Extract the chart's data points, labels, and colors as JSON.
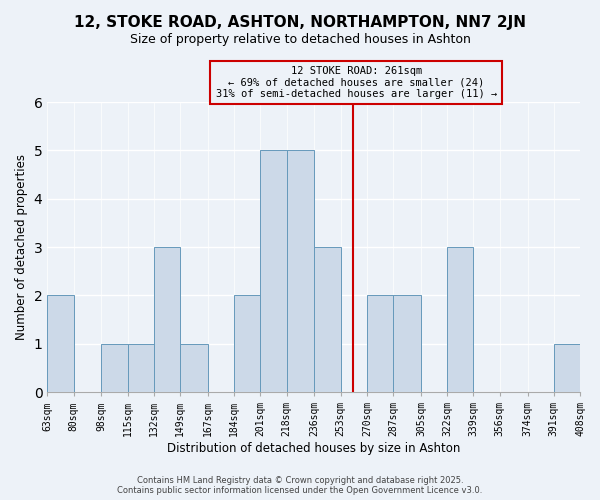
{
  "title": "12, STOKE ROAD, ASHTON, NORTHAMPTON, NN7 2JN",
  "subtitle": "Size of property relative to detached houses in Ashton",
  "xlabel": "Distribution of detached houses by size in Ashton",
  "ylabel": "Number of detached properties",
  "bin_edges": [
    63,
    80,
    98,
    115,
    132,
    149,
    167,
    184,
    201,
    218,
    236,
    253,
    270,
    287,
    305,
    322,
    339,
    356,
    374,
    391,
    408
  ],
  "bin_labels": [
    "63sqm",
    "80sqm",
    "98sqm",
    "115sqm",
    "132sqm",
    "149sqm",
    "167sqm",
    "184sqm",
    "201sqm",
    "218sqm",
    "236sqm",
    "253sqm",
    "270sqm",
    "287sqm",
    "305sqm",
    "322sqm",
    "339sqm",
    "356sqm",
    "374sqm",
    "391sqm",
    "408sqm"
  ],
  "counts": [
    2,
    0,
    1,
    1,
    3,
    1,
    0,
    2,
    5,
    5,
    3,
    0,
    2,
    2,
    0,
    3,
    0,
    0,
    0,
    1
  ],
  "bar_color": "#ccd9e8",
  "bar_edge_color": "#6699bb",
  "property_value": 261,
  "marker_line_color": "#cc0000",
  "annotation_line1": "12 STOKE ROAD: 261sqm",
  "annotation_line2": "← 69% of detached houses are smaller (24)",
  "annotation_line3": "31% of semi-detached houses are larger (11) →",
  "annotation_box_edge_color": "#cc0000",
  "ylim": [
    0,
    6
  ],
  "yticks": [
    0,
    1,
    2,
    3,
    4,
    5,
    6
  ],
  "footer_line1": "Contains HM Land Registry data © Crown copyright and database right 2025.",
  "footer_line2": "Contains public sector information licensed under the Open Government Licence v3.0.",
  "background_color": "#edf2f8",
  "grid_color": "#ffffff",
  "title_fontsize": 11,
  "subtitle_fontsize": 9,
  "axis_label_fontsize": 8.5,
  "tick_fontsize": 7,
  "annotation_fontsize": 7.5,
  "footer_fontsize": 6
}
